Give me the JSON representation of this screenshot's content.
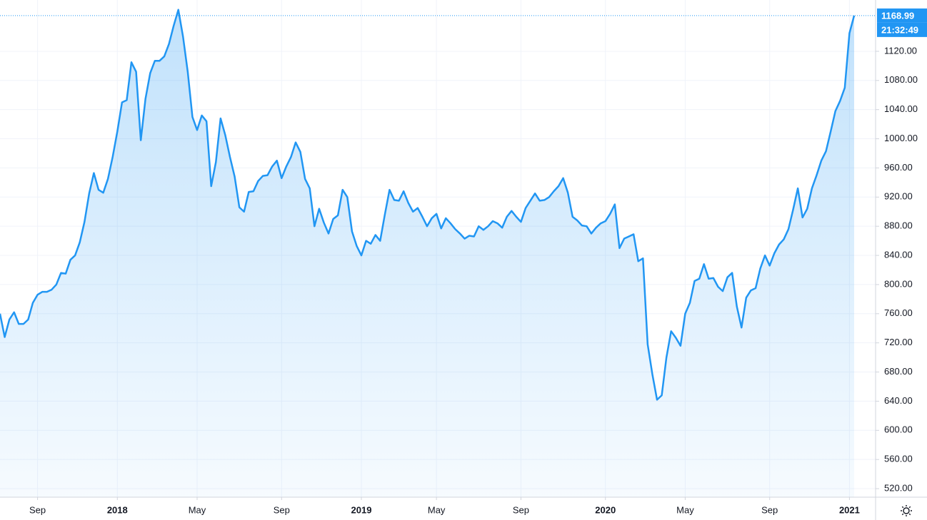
{
  "chart_data": {
    "type": "area",
    "categories": [
      null,
      null,
      null,
      null,
      null,
      null,
      null,
      null,
      "Sep",
      null,
      null,
      null,
      null,
      null,
      null,
      null,
      null,
      null,
      null,
      null,
      null,
      null,
      null,
      null,
      null,
      "2018",
      null,
      null,
      null,
      null,
      null,
      null,
      null,
      null,
      null,
      null,
      null,
      null,
      null,
      null,
      null,
      null,
      "May",
      null,
      null,
      null,
      null,
      null,
      null,
      null,
      null,
      null,
      null,
      null,
      null,
      null,
      null,
      null,
      null,
      null,
      "Sep",
      null,
      null,
      null,
      null,
      null,
      null,
      null,
      null,
      null,
      null,
      null,
      null,
      null,
      null,
      null,
      null,
      "2019",
      null,
      null,
      null,
      null,
      null,
      null,
      null,
      null,
      null,
      null,
      null,
      null,
      null,
      null,
      null,
      "May",
      null,
      null,
      null,
      null,
      null,
      null,
      null,
      null,
      null,
      null,
      null,
      null,
      null,
      null,
      null,
      null,
      null,
      "Sep",
      null,
      null,
      null,
      null,
      null,
      null,
      null,
      null,
      null,
      null,
      null,
      null,
      null,
      null,
      null,
      null,
      null,
      "2020",
      null,
      null,
      null,
      null,
      null,
      null,
      null,
      null,
      null,
      null,
      null,
      null,
      null,
      null,
      null,
      null,
      "May",
      null,
      null,
      null,
      null,
      null,
      null,
      null,
      null,
      null,
      null,
      null,
      null,
      null,
      null,
      null,
      null,
      null,
      "Sep",
      null,
      null,
      null,
      null,
      null,
      null,
      null,
      null,
      null,
      null,
      null,
      null,
      null,
      null,
      null,
      null,
      "2021",
      null
    ],
    "series": [
      {
        "color": "#2196f3",
        "values": [
          760,
          728,
          752,
          762,
          746,
          746,
          752,
          775,
          786,
          790,
          790,
          793,
          800,
          816,
          815,
          834,
          840,
          858,
          886,
          925,
          953,
          930,
          926,
          945,
          975,
          1010,
          1050,
          1053,
          1105,
          1092,
          998,
          1055,
          1090,
          1107,
          1107,
          1113,
          1130,
          1155,
          1177,
          1140,
          1092,
          1030,
          1012,
          1032,
          1024,
          935,
          968,
          1028,
          1005,
          975,
          948,
          906,
          900,
          927,
          928,
          942,
          949,
          950,
          962,
          970,
          946,
          962,
          975,
          995,
          982,
          945,
          932,
          880,
          904,
          885,
          870,
          890,
          895,
          930,
          920,
          873,
          853,
          840,
          860,
          856,
          868,
          860,
          896,
          930,
          916,
          915,
          928,
          912,
          900,
          905,
          893,
          880,
          891,
          897,
          877,
          891,
          884,
          876,
          870,
          863,
          867,
          866,
          880,
          875,
          880,
          887,
          884,
          878,
          893,
          901,
          893,
          886,
          905,
          915,
          925,
          915,
          916,
          920,
          928,
          935,
          946,
          926,
          893,
          888,
          881,
          880,
          870,
          878,
          884,
          887,
          897,
          910,
          850,
          863,
          866,
          869,
          832,
          836,
          718,
          677,
          642,
          648,
          700,
          736,
          727,
          716,
          760,
          775,
          805,
          808,
          828,
          808,
          809,
          797,
          791,
          810,
          816,
          770,
          741,
          782,
          792,
          795,
          822,
          840,
          826,
          843,
          855,
          862,
          876,
          903,
          932,
          892,
          904,
          932,
          950,
          970,
          983,
          1010,
          1038,
          1052,
          1070,
          1145,
          1168.99
        ]
      }
    ],
    "last_time": "21:32:49",
    "ylim": [
      508.3,
      1190.4
    ],
    "yticks": [
      {
        "value": 520,
        "label": "520.00"
      },
      {
        "value": 560,
        "label": "560.00"
      },
      {
        "value": 600,
        "label": "600.00"
      },
      {
        "value": 640,
        "label": "640.00"
      },
      {
        "value": 680,
        "label": "680.00"
      },
      {
        "value": 720,
        "label": "720.00"
      },
      {
        "value": 760,
        "label": "760.00"
      },
      {
        "value": 800,
        "label": "800.00"
      },
      {
        "value": 840,
        "label": "840.00"
      },
      {
        "value": 880,
        "label": "880.00"
      },
      {
        "value": 920,
        "label": "920.00"
      },
      {
        "value": 960,
        "label": "960.00"
      },
      {
        "value": 1000,
        "label": "1000.00"
      },
      {
        "value": 1040,
        "label": "1040.00"
      },
      {
        "value": 1080,
        "label": "1080.00"
      },
      {
        "value": 1120,
        "label": "1120.00"
      }
    ],
    "grid": true
  }
}
